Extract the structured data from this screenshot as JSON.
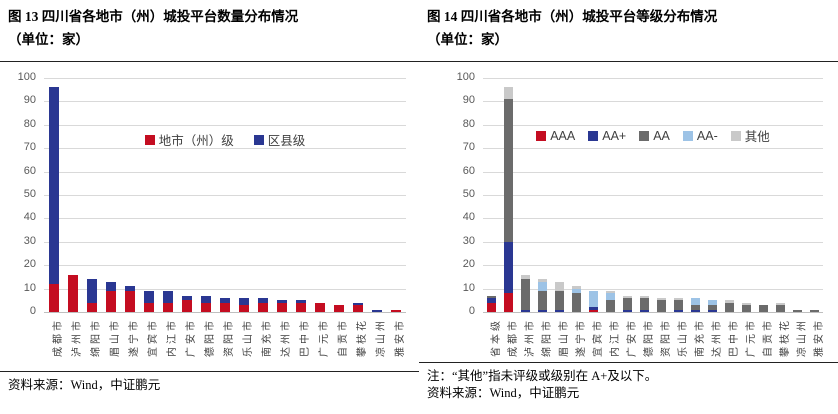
{
  "panels": [
    {
      "title_line1": "图 13 四川省各地市（州）城投平台数量分布情况",
      "title_line2": "（单位：家）",
      "notes": [
        "资料来源：Wind，中证鹏元"
      ]
    },
    {
      "title_line1": "图 14 四川省各地市（州）城投平台等级分布情况",
      "title_line2": "（单位：家）",
      "notes": [
        "注：“其他”指未评级或级别在 A+及以下。",
        "资料来源：Wind，中证鹏元"
      ]
    }
  ],
  "colors": {
    "municipal_red": "#C40D21",
    "county_navy": "#2A3792",
    "aa_gray": "#6B6B6B",
    "aa_minus_blue": "#9DC3E6",
    "other_gray": "#C9C9C9",
    "gridline": "#D9D9D9",
    "axis_line": "#BFBFBF",
    "axis_text": "#595959"
  },
  "chart_data": [
    {
      "type": "bar",
      "stacked": true,
      "title": "图 13 四川省各地市（州）城投平台数量分布情况（单位：家）",
      "xlabel": "",
      "ylabel": "",
      "ylim": [
        0,
        100
      ],
      "ytick_step": 10,
      "grid": true,
      "legend_position": "upper-center-inside",
      "categories": [
        "成都市",
        "泸州市",
        "绵阳市",
        "眉山市",
        "遂宁市",
        "宜宾市",
        "内江市",
        "广安市",
        "德阳市",
        "资阳市",
        "乐山市",
        "南充市",
        "达州市",
        "巴中市",
        "广元市",
        "自贡市",
        "攀枝花",
        "凉山州",
        "雅安市"
      ],
      "series": [
        {
          "name": "地市（州）级",
          "color": "#C40D21",
          "values": [
            12,
            16,
            4,
            9,
            9,
            4,
            4,
            5,
            4,
            4,
            3,
            4,
            4,
            4,
            4,
            3,
            3,
            0,
            1
          ]
        },
        {
          "name": "区县级",
          "color": "#2A3792",
          "values": [
            84,
            0,
            10,
            4,
            2,
            5,
            5,
            2,
            3,
            2,
            3,
            2,
            1,
            1,
            0,
            0,
            1,
            1,
            0
          ]
        }
      ]
    },
    {
      "type": "bar",
      "stacked": true,
      "title": "图 14 四川省各地市（州）城投平台等级分布情况（单位：家）",
      "xlabel": "",
      "ylabel": "",
      "ylim": [
        0,
        100
      ],
      "ytick_step": 10,
      "grid": true,
      "legend_position": "upper-center-inside",
      "categories": [
        "省本级",
        "成都市",
        "泸州市",
        "绵阳市",
        "眉山市",
        "遂宁市",
        "宜宾市",
        "内江市",
        "广安市",
        "德阳市",
        "资阳市",
        "乐山市",
        "南充市",
        "达州市",
        "巴中市",
        "广元市",
        "自贡市",
        "攀枝花",
        "凉山州",
        "雅安市"
      ],
      "series": [
        {
          "name": "AAA",
          "color": "#C40D21",
          "values": [
            4,
            8,
            0,
            0,
            0,
            0,
            1,
            0,
            0,
            0,
            0,
            0,
            0,
            0,
            0,
            0,
            0,
            0,
            0,
            0
          ]
        },
        {
          "name": "AA+",
          "color": "#2A3792",
          "values": [
            2,
            22,
            1,
            1,
            1,
            0,
            1,
            0,
            1,
            1,
            0,
            1,
            1,
            1,
            0,
            0,
            0,
            0,
            0,
            0
          ]
        },
        {
          "name": "AA",
          "color": "#6B6B6B",
          "values": [
            1,
            61,
            13,
            8,
            8,
            8,
            0,
            5,
            5,
            5,
            5,
            4,
            2,
            2,
            4,
            3,
            3,
            3,
            1,
            1
          ]
        },
        {
          "name": "AA-",
          "color": "#9DC3E6",
          "values": [
            0,
            0,
            0,
            4,
            0,
            2,
            7,
            3,
            0,
            0,
            0,
            0,
            3,
            2,
            0,
            0,
            0,
            0,
            0,
            0
          ]
        },
        {
          "name": "其他",
          "color": "#C9C9C9",
          "values": [
            0,
            5,
            2,
            1,
            4,
            1,
            0,
            1,
            1,
            1,
            1,
            1,
            0,
            0,
            1,
            1,
            0,
            1,
            0,
            0
          ]
        }
      ]
    }
  ]
}
